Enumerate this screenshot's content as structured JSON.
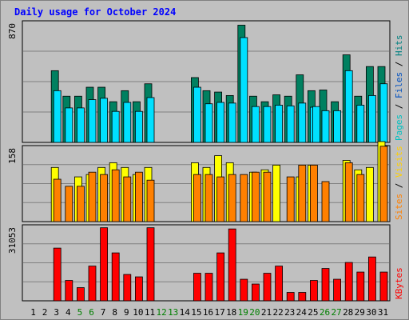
{
  "chart_data": {
    "type": "bar",
    "title": "Daily usage for October 2024",
    "days": [
      "1",
      "2",
      "3",
      "4",
      "5",
      "6",
      "7",
      "8",
      "9",
      "10",
      "11",
      "12",
      "13",
      "14",
      "15",
      "16",
      "17",
      "18",
      "19",
      "20",
      "21",
      "22",
      "23",
      "24",
      "25",
      "26",
      "27",
      "28",
      "29",
      "30",
      "31"
    ],
    "weekend_days": [
      "5",
      "6",
      "12",
      "13",
      "19",
      "20",
      "26",
      "27"
    ],
    "panels": [
      {
        "id": "hits-files-pages",
        "y_max_label": "870",
        "y_max": 870,
        "legend": [
          "Pages",
          "Files",
          "Hits"
        ],
        "legend_colors": [
          "#00c0c0",
          "#0050c0",
          "#008080"
        ],
        "series": [
          {
            "name": "Hits",
            "color": "#008060",
            "values": [
              0,
              0,
              520,
              335,
              335,
              400,
              400,
              295,
              375,
              295,
              425,
              0,
              0,
              0,
              470,
              375,
              365,
              340,
              850,
              335,
              295,
              345,
              335,
              490,
              375,
              380,
              295,
              635,
              335,
              550,
              550
            ]
          },
          {
            "name": "Files",
            "color": "#00e0ff",
            "values": [
              0,
              0,
              375,
              250,
              250,
              310,
              320,
              225,
              290,
              225,
              325,
              0,
              0,
              0,
              400,
              280,
              290,
              285,
              760,
              260,
              260,
              270,
              265,
              285,
              255,
              230,
              230,
              520,
              270,
              340,
              425
            ]
          },
          {
            "name": "Pages",
            "color": "#00e0ff",
            "values": [
              0,
              0,
              0,
              0,
              0,
              0,
              0,
              0,
              0,
              0,
              0,
              0,
              0,
              0,
              0,
              0,
              0,
              0,
              0,
              0,
              0,
              0,
              0,
              0,
              260,
              0,
              0,
              0,
              0,
              0,
              0
            ]
          }
        ]
      },
      {
        "id": "visits-sites",
        "y_max_label": "158",
        "y_max": 158,
        "legend": [
          "Sites",
          "Visits"
        ],
        "legend_colors": [
          "#ff8000",
          "#ffd000"
        ],
        "series": [
          {
            "name": "Visits",
            "color": "#ffff00",
            "values": [
              0,
              0,
              115,
              0,
              95,
              100,
              115,
              125,
              115,
              100,
              115,
              0,
              0,
              0,
              125,
              115,
              140,
              125,
              0,
              105,
              110,
              120,
              0,
              95,
              120,
              0,
              0,
              130,
              110,
              115,
              170
            ]
          },
          {
            "name": "Sites",
            "color": "#ff8000",
            "values": [
              0,
              0,
              90,
              75,
              75,
              105,
              100,
              110,
              95,
              105,
              88,
              0,
              0,
              0,
              100,
              100,
              95,
              100,
              100,
              105,
              105,
              0,
              95,
              120,
              120,
              85,
              0,
              125,
              100,
              0,
              160
            ]
          }
        ]
      },
      {
        "id": "kbytes",
        "y_max_label": "31053",
        "y_max": 31053,
        "legend": [
          "KBytes"
        ],
        "legend_colors": [
          "#ff0000"
        ],
        "series": [
          {
            "name": "KBytes",
            "color": "#ff0000",
            "values": [
              0,
              0,
              22000,
              8500,
              5500,
              14500,
              30500,
              20000,
              11000,
              10000,
              30500,
              0,
              0,
              0,
              11500,
              11500,
              20000,
              30000,
              9000,
              7000,
              11500,
              14500,
              3500,
              3500,
              8500,
              13500,
              9000,
              16000,
              12000,
              18300,
              12000
            ]
          }
        ]
      }
    ]
  }
}
